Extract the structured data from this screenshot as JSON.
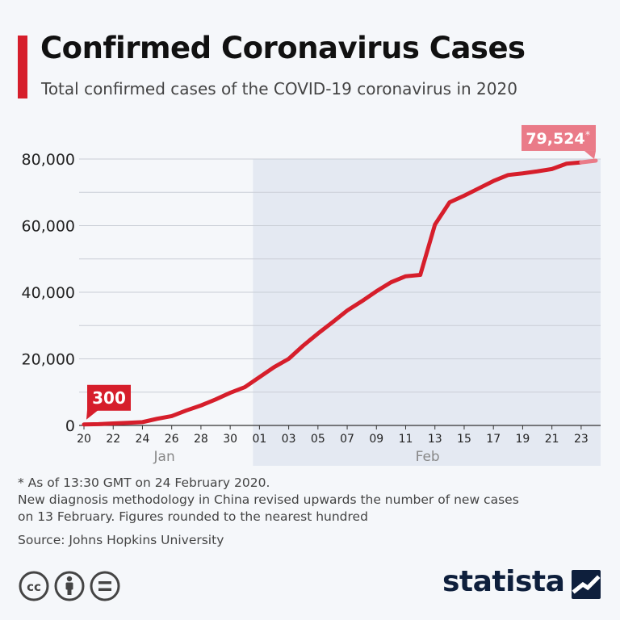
{
  "header": {
    "title": "Confirmed Coronavirus Cases",
    "subtitle": "Total confirmed cases of the COVID-19 coronavirus in 2020"
  },
  "chart_data": {
    "type": "line",
    "title": "Confirmed Coronavirus Cases",
    "subtitle": "Total confirmed cases of the COVID-19 coronavirus in 2020",
    "xlabel": "",
    "ylabel": "",
    "ylim": [
      0,
      80000
    ],
    "y_ticks": [
      "0",
      "20,000",
      "40,000",
      "60,000",
      "80,000"
    ],
    "y_tick_values": [
      0,
      20000,
      40000,
      60000,
      80000
    ],
    "x_tick_labels": [
      "20",
      "22",
      "24",
      "26",
      "28",
      "30",
      "01",
      "03",
      "05",
      "07",
      "09",
      "11",
      "13",
      "15",
      "17",
      "19",
      "21",
      "23"
    ],
    "month_labels": [
      {
        "label": "Jan",
        "dates": [
          "2020-01-20",
          "2020-01-31"
        ]
      },
      {
        "label": "Feb",
        "dates": [
          "2020-02-01",
          "2020-02-24"
        ]
      }
    ],
    "grid": true,
    "highlight_region": {
      "from": "2020-02-01",
      "to": "2020-02-24"
    },
    "x": [
      "2020-01-20",
      "2020-01-21",
      "2020-01-22",
      "2020-01-23",
      "2020-01-24",
      "2020-01-25",
      "2020-01-26",
      "2020-01-27",
      "2020-01-28",
      "2020-01-29",
      "2020-01-30",
      "2020-01-31",
      "2020-02-01",
      "2020-02-02",
      "2020-02-03",
      "2020-02-04",
      "2020-02-05",
      "2020-02-06",
      "2020-02-07",
      "2020-02-08",
      "2020-02-09",
      "2020-02-10",
      "2020-02-11",
      "2020-02-12",
      "2020-02-13",
      "2020-02-14",
      "2020-02-15",
      "2020-02-16",
      "2020-02-17",
      "2020-02-18",
      "2020-02-19",
      "2020-02-20",
      "2020-02-21",
      "2020-02-22",
      "2020-02-23",
      "2020-02-24"
    ],
    "series": [
      {
        "name": "",
        "color": "#d61e2b",
        "values": [
          300,
          400,
          600,
          800,
          1000,
          2000,
          2800,
          4500,
          6000,
          7800,
          9800,
          11500,
          14500,
          17500,
          20000,
          24000,
          27600,
          31000,
          34500,
          37300,
          40300,
          43000,
          44800,
          45200,
          60300,
          67000,
          69000,
          71200,
          73400,
          75200,
          75700,
          76300,
          77000,
          78600,
          79000,
          79524
        ]
      }
    ],
    "annotations": [
      {
        "label": "300",
        "date": "2020-01-20",
        "value": 300,
        "color": "#d61e2b"
      },
      {
        "label": "79,524",
        "suffix": "*",
        "date": "2020-02-24",
        "value": 79524,
        "color": "#ea7b88"
      }
    ]
  },
  "footer": {
    "note_1": "* As of 13:30 GMT on 24 February 2020.",
    "note_2": "New diagnosis methodology in China revised upwards the number of new cases",
    "note_3": "on 13 February. Figures rounded to the nearest hundred",
    "source": "Source: Johns Hopkins University",
    "brand": "statista"
  },
  "icons": [
    "cc-icon",
    "attribution-icon",
    "no-derivatives-icon",
    "statista-logo-icon"
  ]
}
